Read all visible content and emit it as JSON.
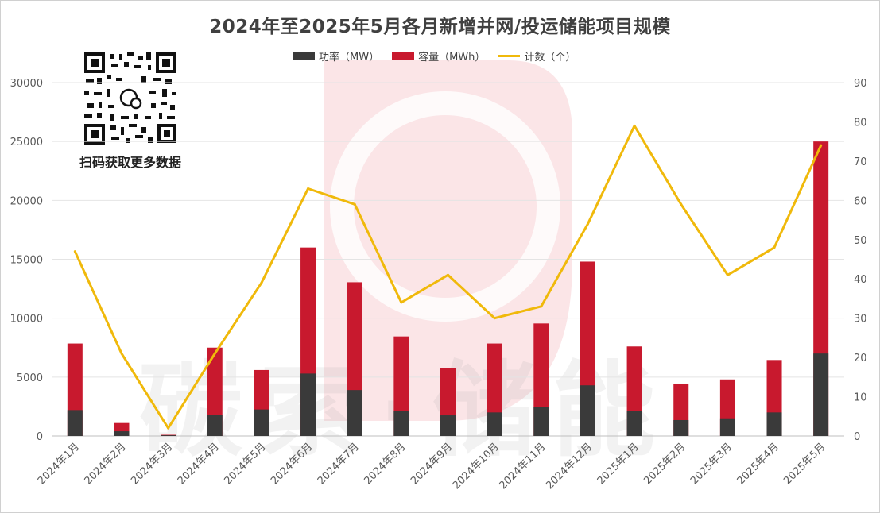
{
  "chart_data": {
    "type": "bar",
    "title": "2024年至2025年5月各月新增并网/投运储能项目规模",
    "categories": [
      "2024年1月",
      "2024年2月",
      "2024年3月",
      "2024年4月",
      "2024年5月",
      "2024年6月",
      "2024年7月",
      "2024年8月",
      "2024年9月",
      "2024年10月",
      "2024年11月",
      "2024年12月",
      "2025年1月",
      "2025年2月",
      "2025年3月",
      "2025年4月",
      "2025年5月"
    ],
    "series": [
      {
        "name": "功率（MW）",
        "kind": "bar",
        "axis": "left",
        "color": "#3a3a3a",
        "values": [
          2200,
          400,
          60,
          1800,
          2250,
          5300,
          3900,
          2150,
          1750,
          2000,
          2450,
          4300,
          2150,
          1350,
          1500,
          2000,
          7000
        ]
      },
      {
        "name": "容量（MWh）",
        "kind": "stacked-bar",
        "axis": "left",
        "color": "#c8192e",
        "values": [
          7850,
          1100,
          100,
          7500,
          5600,
          16000,
          13050,
          8450,
          5750,
          7850,
          9550,
          14800,
          7600,
          4450,
          4800,
          6450,
          25000
        ]
      },
      {
        "name": "计数（个）",
        "kind": "line",
        "axis": "right",
        "color": "#f0b90b",
        "values": [
          47,
          21,
          2,
          21,
          39,
          63,
          59,
          34,
          41,
          30,
          33,
          54,
          79,
          59,
          41,
          48,
          74
        ]
      }
    ],
    "ylim_left": [
      0,
      30000
    ],
    "ylim_right": [
      0,
      90
    ],
    "yticks_left": [
      "0",
      "5000",
      "10000",
      "15000",
      "20000",
      "25000",
      "30000"
    ],
    "yticks_right": [
      "0",
      "10",
      "20",
      "30",
      "40",
      "50",
      "60",
      "70",
      "80",
      "90"
    ],
    "legend_position": "top-center",
    "grid": true
  },
  "qr_caption": "扫码获取更多数据",
  "watermark": "碳索·储能"
}
